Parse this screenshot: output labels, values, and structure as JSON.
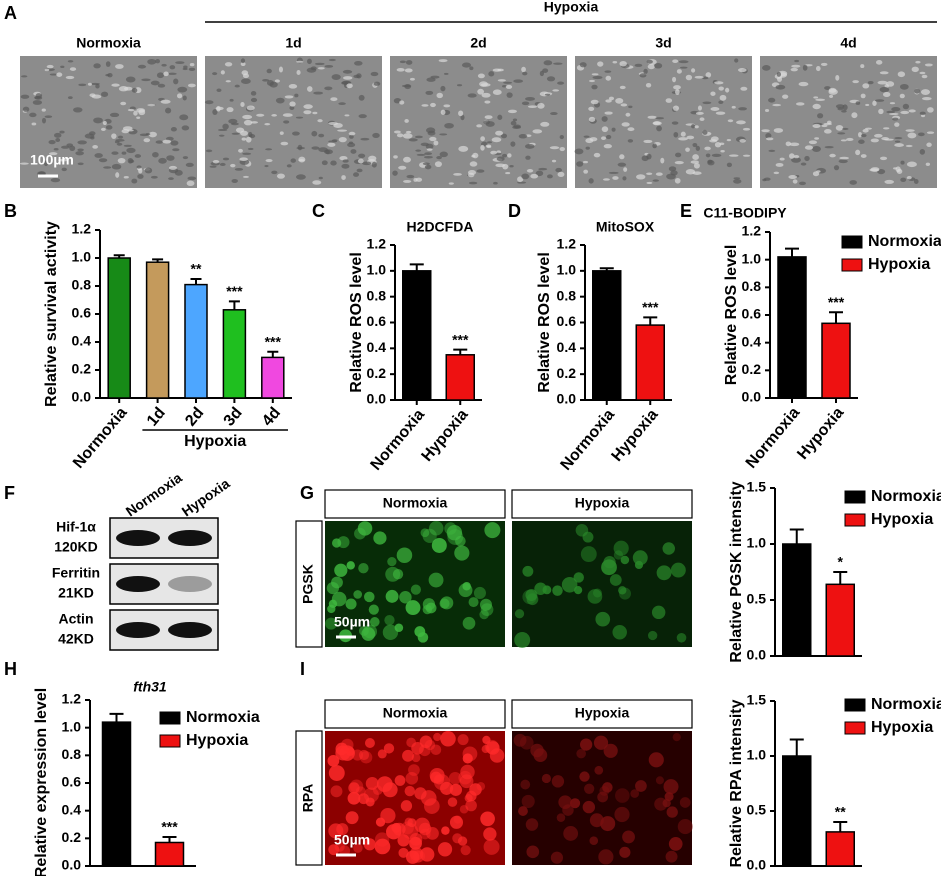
{
  "panel_labels": [
    "A",
    "B",
    "C",
    "D",
    "E",
    "F",
    "G",
    "H",
    "I"
  ],
  "micrographs": {
    "group_label": "Hypoxia",
    "labels": [
      "Normoxia",
      "1d",
      "2d",
      "3d",
      "4d"
    ],
    "scale_bar": "100µm"
  },
  "western_blot": {
    "lanes": [
      "Normoxia",
      "Hypoxia"
    ],
    "rows": [
      {
        "name": "Hif-1α",
        "size": "120KD"
      },
      {
        "name": "Ferritin",
        "size": "21KD"
      },
      {
        "name": "Actin",
        "size": "42KD"
      }
    ]
  },
  "fluorescence": [
    {
      "stain": "PGSK",
      "columns": [
        "Normoxia",
        "Hypoxia"
      ],
      "scale_bar": "50µm"
    },
    {
      "stain": "RPA",
      "columns": [
        "Normoxia",
        "Hypoxia"
      ],
      "scale_bar": "50µm"
    }
  ],
  "chart_data": [
    {
      "type": "bar",
      "y_label": "Relative survival activity",
      "categories": [
        "Normoxia",
        "1d",
        "2d",
        "3d",
        "4d"
      ],
      "category_group": "Hypoxia",
      "values": [
        1.0,
        0.97,
        0.81,
        0.63,
        0.29
      ],
      "errors": [
        0.02,
        0.02,
        0.04,
        0.06,
        0.04
      ],
      "significance": [
        null,
        null,
        "**",
        "***",
        "***"
      ],
      "colors": [
        "#178a17",
        "#c49a5c",
        "#4da6ff",
        "#1fbf1f",
        "#f048e0"
      ],
      "ylim": [
        0,
        1.2
      ],
      "yticks": [
        {
          "value": 0,
          "label": "0.0"
        },
        0.2,
        0.4,
        0.6,
        0.8,
        {
          "value": 1,
          "label": "1.0"
        },
        1.2
      ]
    },
    {
      "type": "bar",
      "title": "H2DCFDA",
      "y_label": "Relative ROS level",
      "categories": [
        "Normoxia",
        "Hypoxia"
      ],
      "values": [
        1.0,
        0.35
      ],
      "errors": [
        0.05,
        0.04
      ],
      "significance": [
        null,
        "***"
      ],
      "colors": [
        "#000000",
        "#ee1111"
      ],
      "ylim": [
        0,
        1.2
      ],
      "yticks": [
        {
          "value": 0,
          "label": "0.0"
        },
        0.2,
        0.4,
        0.6,
        0.8,
        {
          "value": 1,
          "label": "1.0"
        },
        1.2
      ]
    },
    {
      "type": "bar",
      "title": "MitoSOX",
      "y_label": "Relative ROS level",
      "categories": [
        "Normoxia",
        "Hypoxia"
      ],
      "values": [
        1.0,
        0.58
      ],
      "errors": [
        0.02,
        0.06
      ],
      "significance": [
        null,
        "***"
      ],
      "colors": [
        "#000000",
        "#ee1111"
      ],
      "ylim": [
        0,
        1.2
      ],
      "yticks": [
        {
          "value": 0,
          "label": "0.0"
        },
        0.2,
        0.4,
        0.6,
        0.8,
        {
          "value": 1,
          "label": "1.0"
        },
        1.2
      ]
    },
    {
      "type": "bar",
      "title": "C11-BODIPY",
      "y_label": "Relative ROS level",
      "categories": [
        "Normoxia",
        "Hypoxia"
      ],
      "values": [
        1.02,
        0.54
      ],
      "errors": [
        0.06,
        0.08
      ],
      "significance": [
        null,
        "***"
      ],
      "colors": [
        "#000000",
        "#ee1111"
      ],
      "legend": "upper right",
      "ylim": [
        0,
        1.2
      ],
      "yticks": [
        {
          "value": 0,
          "label": "0.0"
        },
        0.2,
        0.4,
        0.6,
        0.8,
        {
          "value": 1,
          "label": "1.0"
        },
        1.2
      ]
    },
    {
      "type": "bar",
      "y_label": "Relative PGSK intensity",
      "categories": [
        "Normoxia",
        "Hypoxia"
      ],
      "values": [
        1.0,
        0.64
      ],
      "errors": [
        0.13,
        0.11
      ],
      "significance": [
        null,
        "*"
      ],
      "colors": [
        "#000000",
        "#ee1111"
      ],
      "legend": "upper right",
      "x_tick_labels": false,
      "ylim": [
        0,
        1.5
      ],
      "yticks": [
        {
          "value": 0,
          "label": "0.0"
        },
        0.5,
        {
          "value": 1,
          "label": "1.0"
        },
        1.5
      ]
    },
    {
      "type": "bar",
      "title": "fth31",
      "title_style": "italic",
      "y_label": "Relative expression level",
      "categories": [
        "Normoxia",
        "Hypoxia"
      ],
      "values": [
        1.04,
        0.17
      ],
      "errors": [
        0.06,
        0.04
      ],
      "significance": [
        null,
        "***"
      ],
      "colors": [
        "#000000",
        "#ee1111"
      ],
      "legend": "upper right",
      "x_tick_labels": false,
      "ylim": [
        0,
        1.2
      ],
      "yticks": [
        {
          "value": 0,
          "label": "0.0"
        },
        0.2,
        0.4,
        0.6,
        0.8,
        {
          "value": 1,
          "label": "1.0"
        },
        1.2
      ]
    },
    {
      "type": "bar",
      "y_label": "Relative RPA intensity",
      "categories": [
        "Normoxia",
        "Hypoxia"
      ],
      "values": [
        1.0,
        0.31
      ],
      "errors": [
        0.15,
        0.09
      ],
      "significance": [
        null,
        "**"
      ],
      "colors": [
        "#000000",
        "#ee1111"
      ],
      "legend": "upper right",
      "x_tick_labels": false,
      "ylim": [
        0,
        1.5
      ],
      "yticks": [
        {
          "value": 0,
          "label": "0.0"
        },
        0.5,
        {
          "value": 1,
          "label": "1.0"
        },
        1.5
      ]
    }
  ]
}
